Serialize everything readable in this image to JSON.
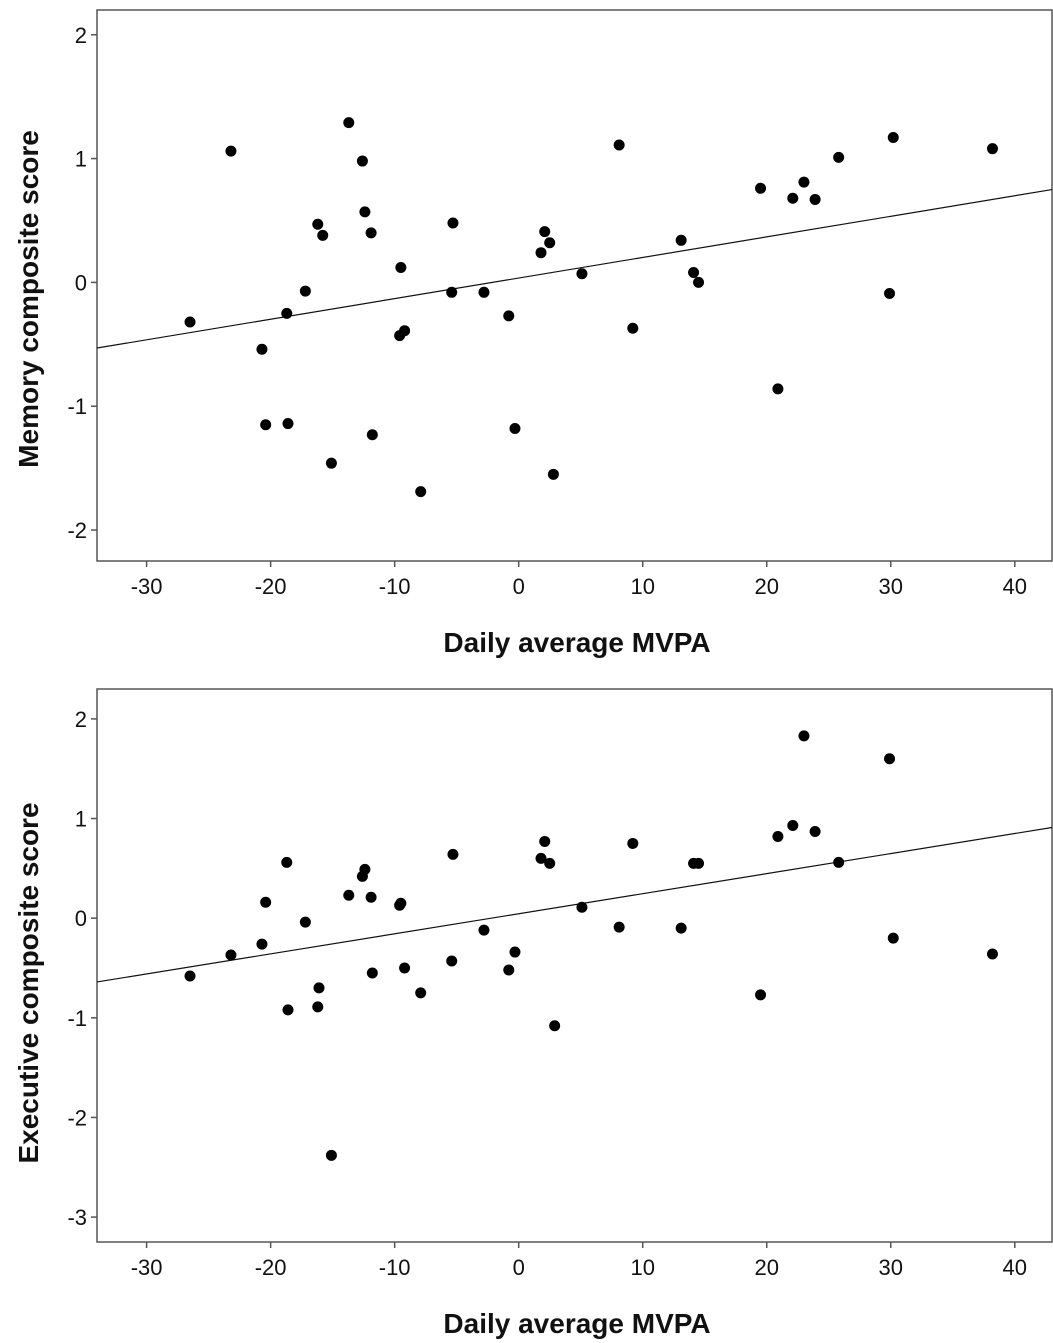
{
  "chart_data": [
    {
      "type": "scatter",
      "xlabel": "Daily average MVPA",
      "ylabel": "Memory composite score",
      "xlim": [
        -34,
        43
      ],
      "ylim": [
        -2.25,
        2.2
      ],
      "xticks": [
        -30,
        -20,
        -10,
        0,
        10,
        20,
        30,
        40
      ],
      "yticks": [
        -2,
        -1,
        0,
        1,
        2
      ],
      "fit_line": {
        "x": [
          -34,
          43
        ],
        "y": [
          -0.53,
          0.75
        ]
      },
      "series": [
        {
          "x": [
            -26.5,
            -23.2,
            -20.7,
            -20.4,
            -18.7,
            -18.6,
            -17.2,
            -16.2,
            -15.8,
            -15.1,
            -13.7,
            -12.6,
            -12.4,
            -11.9,
            -11.8,
            -9.6,
            -9.5,
            -9.2,
            -7.9,
            -5.4,
            -5.3,
            -2.8,
            -0.8,
            -0.3,
            1.8,
            2.1,
            2.5,
            2.8,
            5.1,
            8.1,
            9.2,
            13.1,
            14.1,
            14.5,
            19.5,
            20.9,
            22.1,
            23.0,
            23.9,
            25.8,
            29.9,
            30.2,
            38.2
          ],
          "y": [
            -0.32,
            1.06,
            -0.54,
            -1.15,
            -0.25,
            -1.14,
            -0.07,
            0.47,
            0.38,
            -1.46,
            1.29,
            0.98,
            0.57,
            0.4,
            -1.23,
            -0.43,
            0.12,
            -0.39,
            -1.69,
            -0.08,
            0.48,
            -0.08,
            -0.27,
            -1.18,
            0.24,
            0.41,
            0.32,
            -1.55,
            0.07,
            1.11,
            -0.37,
            0.34,
            0.08,
            0.0,
            0.76,
            -0.86,
            0.68,
            0.81,
            0.67,
            1.01,
            -0.09,
            1.17,
            1.08
          ]
        }
      ]
    },
    {
      "type": "scatter",
      "xlabel": "Daily average MVPA",
      "ylabel": "Executive composite score",
      "xlim": [
        -34,
        43
      ],
      "ylim": [
        -3.25,
        2.3
      ],
      "xticks": [
        -30,
        -20,
        -10,
        0,
        10,
        20,
        30,
        40
      ],
      "yticks": [
        -3,
        -2,
        -1,
        0,
        1,
        2
      ],
      "fit_line": {
        "x": [
          -34,
          43
        ],
        "y": [
          -0.64,
          0.91
        ]
      },
      "series": [
        {
          "x": [
            -26.5,
            -23.2,
            -20.7,
            -20.4,
            -18.7,
            -18.6,
            -17.2,
            -16.2,
            -16.1,
            -15.1,
            -13.7,
            -12.6,
            -12.4,
            -11.9,
            -11.8,
            -9.6,
            -9.5,
            -9.2,
            -7.9,
            -5.4,
            -5.3,
            -2.8,
            -0.8,
            -0.3,
            1.8,
            2.1,
            2.5,
            2.9,
            5.1,
            8.1,
            9.2,
            13.1,
            14.1,
            14.5,
            19.5,
            20.9,
            22.1,
            23.0,
            23.9,
            25.8,
            29.9,
            30.2,
            38.2
          ],
          "y": [
            -0.58,
            -0.37,
            -0.26,
            0.16,
            0.56,
            -0.92,
            -0.04,
            -0.89,
            -0.7,
            -2.38,
            0.23,
            0.42,
            0.49,
            0.21,
            -0.55,
            0.13,
            0.15,
            -0.5,
            -0.75,
            -0.43,
            0.64,
            -0.12,
            -0.52,
            -0.34,
            0.6,
            0.77,
            0.55,
            -1.08,
            0.11,
            -0.09,
            0.75,
            -0.1,
            0.55,
            0.55,
            -0.77,
            0.82,
            0.93,
            1.83,
            0.87,
            0.56,
            1.6,
            -0.2,
            -0.36
          ]
        }
      ]
    }
  ]
}
